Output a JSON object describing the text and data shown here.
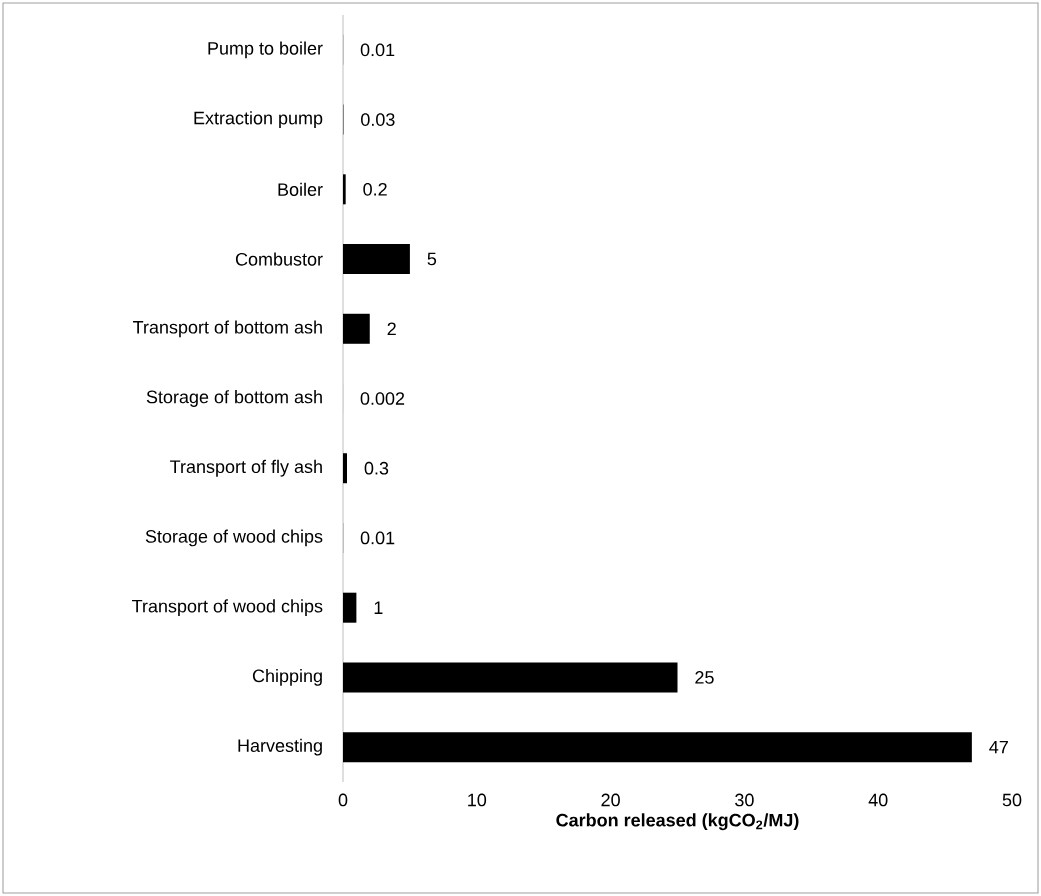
{
  "chart_data": {
    "type": "bar",
    "orientation": "horizontal",
    "categories": [
      "Pump to boiler",
      "Extraction pump",
      "Boiler",
      "Combustor",
      "Transport of bottom ash",
      "Storage of bottom ash",
      "Transport of fly ash",
      "Storage of wood chips",
      "Transport of wood chips",
      "Chipping",
      "Harvesting"
    ],
    "values": [
      0.01,
      0.03,
      0.2,
      5,
      2,
      0.002,
      0.3,
      0.01,
      1,
      25,
      47
    ],
    "color": "#000000",
    "data_labels": true,
    "xlim": [
      0,
      50
    ],
    "xticks": [
      0,
      10,
      20,
      30,
      40,
      50
    ],
    "xlabel": "Carbon released (kgCO$_{2}$/MJ)",
    "grid": false
  }
}
